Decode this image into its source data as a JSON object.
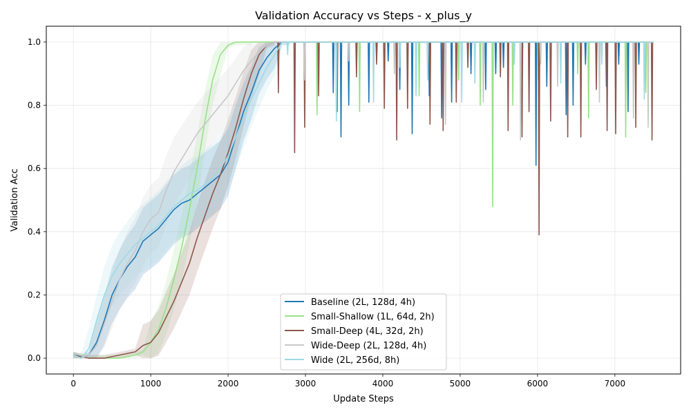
{
  "chart_data": {
    "type": "line",
    "title": "Validation Accuracy vs Steps - x_plus_y",
    "xlabel": "Update Steps",
    "ylabel": "Validation Acc",
    "xlim": [
      -350,
      7850
    ],
    "ylim": [
      -0.05,
      1.05
    ],
    "xticks": [
      0,
      1000,
      2000,
      3000,
      4000,
      5000,
      6000,
      7000
    ],
    "yticks": [
      0.0,
      0.2,
      0.4,
      0.6,
      0.8,
      1.0
    ],
    "xtick_labels": [
      "0",
      "1000",
      "2000",
      "3000",
      "4000",
      "5000",
      "6000",
      "7000"
    ],
    "ytick_labels": [
      "0.0",
      "0.2",
      "0.4",
      "0.6",
      "0.8",
      "1.0"
    ],
    "grid": true,
    "legend_position": "lower-center",
    "series": [
      {
        "name": "Baseline (2L, 128d, 4h)",
        "color": "#1f77b4",
        "x": [
          0,
          100,
          200,
          300,
          400,
          500,
          600,
          700,
          800,
          900,
          1000,
          1100,
          1200,
          1300,
          1400,
          1500,
          1600,
          1700,
          1800,
          1900,
          2000,
          2100,
          2200,
          2300,
          2400,
          2500,
          2600,
          2700,
          2800
        ],
        "y": [
          0.01,
          0.0,
          0.01,
          0.05,
          0.12,
          0.2,
          0.25,
          0.29,
          0.32,
          0.37,
          0.39,
          0.41,
          0.44,
          0.47,
          0.49,
          0.5,
          0.52,
          0.54,
          0.56,
          0.58,
          0.62,
          0.7,
          0.78,
          0.84,
          0.91,
          0.95,
          0.98,
          1.0,
          1.0
        ],
        "dips": [
          [
            2280,
            0.68
          ],
          [
            2520,
            0.64
          ],
          [
            2620,
            0.83
          ],
          [
            3360,
            0.84
          ],
          [
            3460,
            0.7
          ],
          [
            3560,
            0.8
          ],
          [
            3820,
            0.81
          ],
          [
            4070,
            0.94
          ],
          [
            4220,
            0.85
          ],
          [
            4380,
            0.71
          ],
          [
            4600,
            0.83
          ],
          [
            4760,
            0.76
          ],
          [
            4890,
            0.81
          ],
          [
            5140,
            0.9
          ],
          [
            5330,
            0.85
          ],
          [
            5460,
            0.9
          ],
          [
            5560,
            0.92
          ],
          [
            5800,
            0.85
          ],
          [
            5980,
            0.61
          ],
          [
            6120,
            0.86
          ],
          [
            6370,
            0.77
          ],
          [
            6460,
            0.8
          ],
          [
            6620,
            0.93
          ],
          [
            6890,
            0.86
          ],
          [
            7050,
            0.93
          ],
          [
            7170,
            0.78
          ],
          [
            7310,
            0.93
          ]
        ]
      },
      {
        "name": "Small-Shallow (1L, 64d, 2h)",
        "color": "#98df8a",
        "x": [
          0,
          200,
          400,
          600,
          800,
          900,
          1000,
          1100,
          1200,
          1300,
          1400,
          1500,
          1600,
          1700,
          1800,
          1900,
          2000,
          2100,
          2200,
          2300
        ],
        "y": [
          0.01,
          0.0,
          0.0,
          0.0,
          0.01,
          0.02,
          0.05,
          0.09,
          0.16,
          0.25,
          0.35,
          0.47,
          0.6,
          0.75,
          0.88,
          0.96,
          0.99,
          1.0,
          1.0,
          1.0
        ],
        "dips": [
          [
            3150,
            0.77
          ],
          [
            3700,
            0.78
          ],
          [
            3920,
            0.96
          ],
          [
            4470,
            0.83
          ],
          [
            4980,
            0.88
          ],
          [
            5260,
            0.8
          ],
          [
            5420,
            0.48
          ],
          [
            5680,
            0.8
          ],
          [
            6010,
            0.88
          ],
          [
            6520,
            0.9
          ],
          [
            6660,
            0.76
          ],
          [
            7140,
            0.7
          ],
          [
            7400,
            0.84
          ]
        ]
      },
      {
        "name": "Small-Deep (4L, 32d, 2h)",
        "color": "#8c564b",
        "x": [
          0,
          200,
          400,
          600,
          800,
          900,
          1000,
          1100,
          1200,
          1300,
          1400,
          1500,
          1600,
          1700,
          1800,
          1900,
          2000,
          2100,
          2200,
          2300,
          2400,
          2500,
          2600
        ],
        "y": [
          0.01,
          0.0,
          0.0,
          0.01,
          0.02,
          0.04,
          0.05,
          0.08,
          0.13,
          0.18,
          0.24,
          0.3,
          0.38,
          0.45,
          0.52,
          0.58,
          0.65,
          0.73,
          0.82,
          0.9,
          0.96,
          0.99,
          1.0
        ],
        "dips": [
          [
            2650,
            0.84
          ],
          [
            2860,
            0.65
          ],
          [
            2990,
            0.73
          ],
          [
            3170,
            0.83
          ],
          [
            3410,
            0.78
          ],
          [
            3660,
            0.89
          ],
          [
            3920,
            0.93
          ],
          [
            4020,
            0.79
          ],
          [
            4180,
            0.69
          ],
          [
            4320,
            0.79
          ],
          [
            4610,
            0.74
          ],
          [
            4780,
            0.72
          ],
          [
            4950,
            0.81
          ],
          [
            5100,
            0.92
          ],
          [
            5520,
            0.89
          ],
          [
            5620,
            0.72
          ],
          [
            5800,
            0.7
          ],
          [
            5890,
            0.78
          ],
          [
            6020,
            0.39
          ],
          [
            6170,
            0.75
          ],
          [
            6390,
            0.7
          ],
          [
            6560,
            0.7
          ],
          [
            6760,
            0.85
          ],
          [
            6900,
            0.72
          ],
          [
            7010,
            0.71
          ],
          [
            7270,
            0.73
          ],
          [
            7480,
            0.69
          ]
        ]
      },
      {
        "name": "Wide-Deep (2L, 128d, 4h)",
        "color": "#c7c7c7",
        "x": [
          0,
          100,
          200,
          300,
          400,
          500,
          600,
          700,
          800,
          900,
          1000,
          1100,
          1200,
          1300,
          1400,
          1500,
          1600,
          1700,
          1800,
          1900,
          2000,
          2100,
          2200,
          2300,
          2400,
          2500,
          2600
        ],
        "y": [
          0.01,
          0.0,
          0.01,
          0.04,
          0.11,
          0.18,
          0.25,
          0.3,
          0.34,
          0.4,
          0.44,
          0.46,
          0.53,
          0.59,
          0.63,
          0.67,
          0.71,
          0.74,
          0.77,
          0.8,
          0.83,
          0.87,
          0.91,
          0.94,
          0.97,
          0.99,
          1.0
        ],
        "dips": [
          [
            2330,
            0.6
          ],
          [
            2990,
            0.88
          ],
          [
            3560,
            0.94
          ],
          [
            4150,
            0.9
          ],
          [
            4810,
            0.74
          ],
          [
            5300,
            0.81
          ],
          [
            5780,
            0.69
          ],
          [
            6040,
            0.93
          ],
          [
            6260,
            0.86
          ],
          [
            6800,
            0.81
          ],
          [
            7240,
            0.76
          ],
          [
            7430,
            0.73
          ]
        ]
      },
      {
        "name": "Wide (2L, 256d, 8h)",
        "color": "#9edae5",
        "x": [
          0,
          100,
          200,
          300,
          400,
          500,
          600,
          700,
          800,
          900,
          1000,
          1100,
          1200,
          1300,
          1400,
          1500,
          1600,
          1700,
          1800,
          1900,
          2000,
          2100,
          2200,
          2300,
          2400,
          2500,
          2600,
          2700
        ],
        "y": [
          0.01,
          0.0,
          0.03,
          0.12,
          0.2,
          0.26,
          0.3,
          0.33,
          0.36,
          0.38,
          0.4,
          0.42,
          0.45,
          0.48,
          0.5,
          0.52,
          0.53,
          0.55,
          0.57,
          0.6,
          0.64,
          0.7,
          0.76,
          0.82,
          0.87,
          0.92,
          0.96,
          1.0
        ],
        "dips": [
          [
            2570,
            0.71
          ],
          [
            2770,
            0.96
          ],
          [
            3400,
            0.75
          ],
          [
            3880,
            0.81
          ],
          [
            4220,
            0.92
          ],
          [
            4430,
            0.83
          ],
          [
            4580,
            0.88
          ],
          [
            5020,
            0.81
          ],
          [
            5190,
            0.87
          ],
          [
            5700,
            0.93
          ],
          [
            6300,
            0.87
          ],
          [
            6830,
            0.93
          ],
          [
            7380,
            0.82
          ]
        ]
      }
    ]
  }
}
